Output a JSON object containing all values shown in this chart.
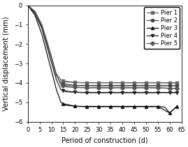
{
  "title": "",
  "xlabel": "Period of construction (d)",
  "ylabel": "Vertical displacement (mm)",
  "xlim": [
    0,
    65
  ],
  "ylim": [
    -6,
    0
  ],
  "xticks": [
    0,
    5,
    10,
    15,
    20,
    25,
    30,
    35,
    40,
    45,
    50,
    55,
    60,
    65
  ],
  "yticks": [
    0,
    -1,
    -2,
    -3,
    -4,
    -5,
    -6
  ],
  "series": [
    {
      "label": "Pier 1",
      "marker": "s",
      "color": "#666666",
      "x": [
        0,
        3,
        6,
        9,
        12,
        14,
        16,
        18,
        20,
        25,
        30,
        35,
        40,
        45,
        50,
        55,
        60,
        63
      ],
      "y": [
        0,
        -0.3,
        -1.0,
        -2.2,
        -3.5,
        -3.85,
        -3.95,
        -3.97,
        -3.98,
        -3.99,
        -3.99,
        -3.99,
        -3.99,
        -3.99,
        -3.99,
        -3.99,
        -4.0,
        -4.0
      ]
    },
    {
      "label": "Pier 2",
      "marker": "o",
      "color": "#444444",
      "x": [
        0,
        3,
        6,
        9,
        12,
        14,
        16,
        18,
        20,
        25,
        30,
        35,
        40,
        45,
        50,
        55,
        60,
        63
      ],
      "y": [
        0,
        -0.35,
        -1.1,
        -2.3,
        -3.6,
        -4.0,
        -4.1,
        -4.12,
        -4.13,
        -4.14,
        -4.14,
        -4.14,
        -4.14,
        -4.14,
        -4.14,
        -4.14,
        -4.15,
        -4.15
      ]
    },
    {
      "label": "Pier 3",
      "marker": "^",
      "color": "#111111",
      "x": [
        0,
        3,
        6,
        9,
        12,
        14,
        16,
        18,
        20,
        25,
        30,
        35,
        40,
        45,
        50,
        55,
        58,
        60,
        63
      ],
      "y": [
        0,
        -0.5,
        -1.5,
        -2.9,
        -4.3,
        -5.0,
        -5.15,
        -5.18,
        -5.2,
        -5.22,
        -5.22,
        -5.22,
        -5.22,
        -5.22,
        -5.22,
        -5.22,
        -5.25,
        -5.55,
        -5.22
      ]
    },
    {
      "label": "Pier 4",
      "marker": "v",
      "color": "#222222",
      "x": [
        0,
        3,
        6,
        9,
        12,
        14,
        16,
        18,
        20,
        25,
        30,
        35,
        40,
        45,
        50,
        55,
        60,
        63
      ],
      "y": [
        0,
        -0.4,
        -1.2,
        -2.5,
        -3.8,
        -4.35,
        -4.45,
        -4.47,
        -4.48,
        -4.5,
        -4.5,
        -4.5,
        -4.5,
        -4.5,
        -4.5,
        -4.5,
        -4.5,
        -4.5
      ]
    },
    {
      "label": "Pier 5",
      "marker": "D",
      "color": "#555555",
      "x": [
        0,
        3,
        6,
        9,
        12,
        14,
        16,
        18,
        20,
        25,
        30,
        35,
        40,
        45,
        50,
        55,
        60,
        63
      ],
      "y": [
        0,
        -0.32,
        -1.05,
        -2.25,
        -3.55,
        -4.1,
        -4.2,
        -4.22,
        -4.23,
        -4.25,
        -4.25,
        -4.25,
        -4.25,
        -4.25,
        -4.25,
        -4.25,
        -4.28,
        -4.28
      ]
    }
  ],
  "background_color": "#ffffff",
  "legend_fontsize": 6.0,
  "axis_fontsize": 7.0,
  "tick_fontsize": 6.0,
  "marker_interval_x": [
    15,
    20,
    25,
    30,
    35,
    40,
    45,
    50,
    55,
    60,
    63
  ],
  "linewidth": 0.9,
  "markersize": 3.0
}
